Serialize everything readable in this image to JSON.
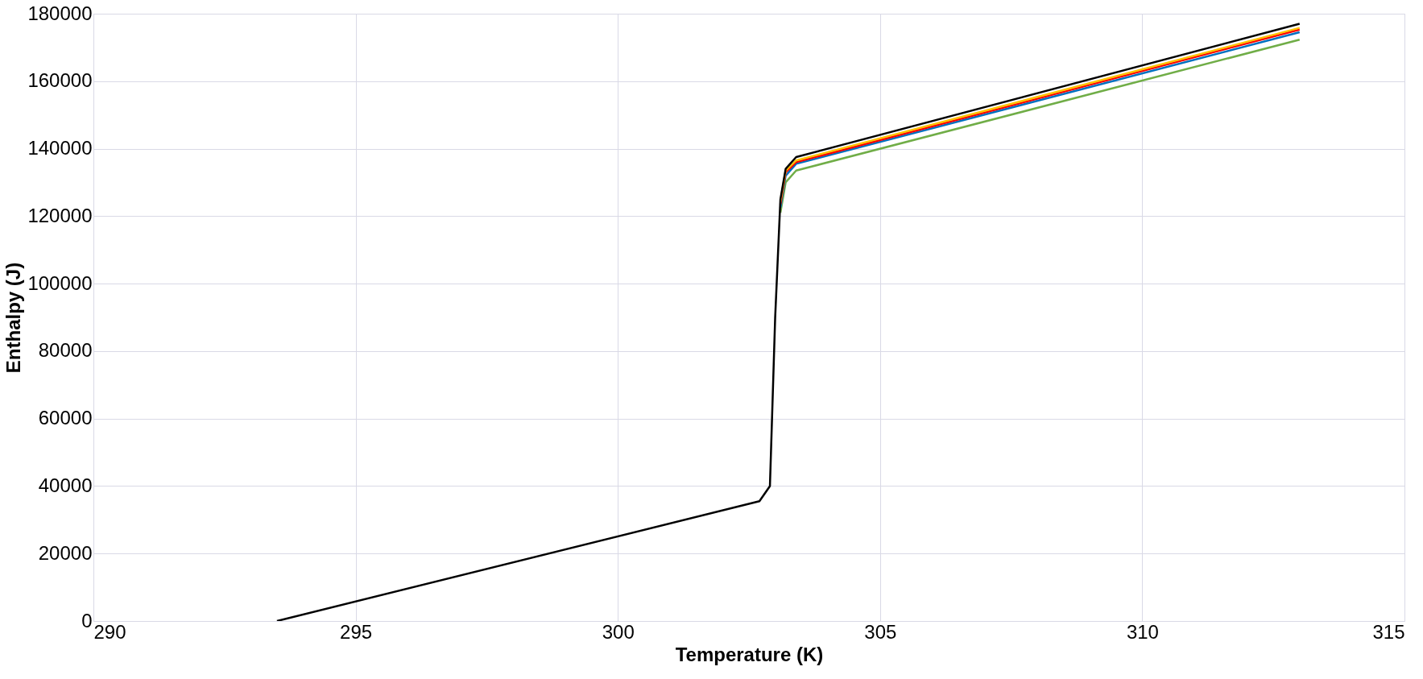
{
  "chart_data": {
    "type": "line",
    "xlabel": "Temperature (K)",
    "ylabel": "Enthalpy (J)",
    "xlim": [
      290,
      315
    ],
    "xticks": [
      290,
      295,
      300,
      305,
      310,
      315
    ],
    "ylim": [
      0,
      180000
    ],
    "yticks": [
      0,
      20000,
      40000,
      60000,
      80000,
      100000,
      120000,
      140000,
      160000,
      180000
    ],
    "grid": true,
    "marker": "none",
    "line_style": "solid",
    "legend": false,
    "x": [
      293.5,
      302.7,
      302.9,
      303.0,
      303.1,
      303.2,
      303.4,
      313
    ],
    "series": [
      {
        "color": "#70ad47",
        "values": [
          null,
          null,
          null,
          null,
          121000,
          130000,
          133500,
          172300
        ]
      },
      {
        "color": "#0070c0",
        "values": [
          null,
          null,
          null,
          null,
          122500,
          132000,
          135500,
          174500
        ]
      },
      {
        "color": "#ff0000",
        "values": [
          null,
          null,
          null,
          null,
          123500,
          133000,
          136000,
          175300
        ]
      },
      {
        "color": "#ffc000",
        "values": [
          null,
          null,
          null,
          null,
          124300,
          133500,
          136500,
          175800
        ]
      },
      {
        "color": "#000000",
        "values": [
          0,
          35500,
          40000,
          90000,
          125000,
          134000,
          137500,
          177000
        ]
      }
    ]
  }
}
